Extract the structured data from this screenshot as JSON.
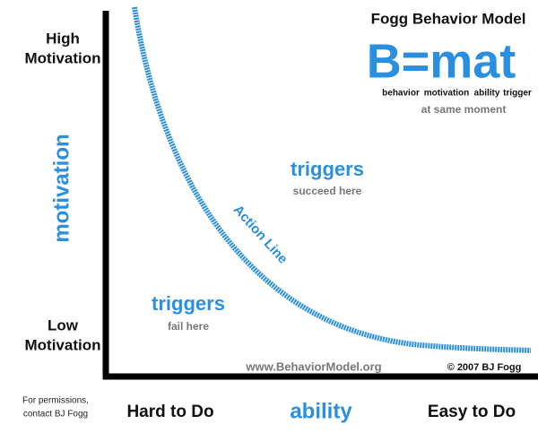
{
  "header": {
    "title": "Fogg Behavior Model",
    "formula": "B=mat",
    "formula_terms": [
      "behavior",
      "motivation",
      "ability",
      "trigger"
    ],
    "formula_note": "at same moment"
  },
  "y_axis": {
    "label": "motivation",
    "top": [
      "High",
      "Motivation"
    ],
    "bottom": [
      "Low",
      "Motivation"
    ]
  },
  "x_axis": {
    "label": "ability",
    "left": "Hard to Do",
    "right": "Easy to Do"
  },
  "curve": {
    "label": "Action Line"
  },
  "regions": [
    {
      "title": "triggers",
      "note": "succeed here"
    },
    {
      "title": "triggers",
      "note": "fail here"
    }
  ],
  "footer": {
    "website": "www.BehaviorModel.org",
    "copyright": "© 2007 BJ Fogg",
    "permissions": [
      "For permissions,",
      "contact BJ Fogg"
    ]
  }
}
